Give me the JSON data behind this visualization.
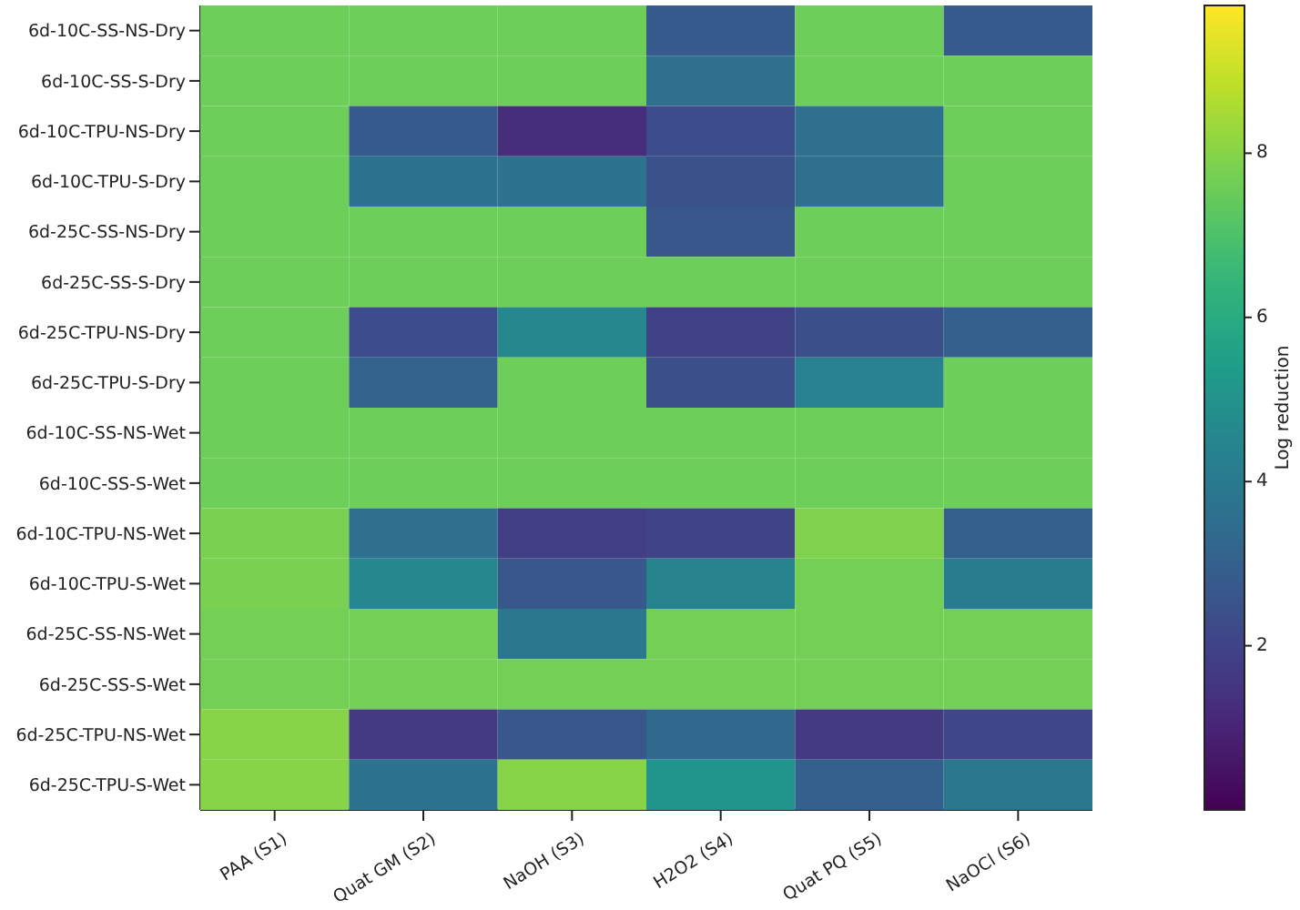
{
  "chart_data": {
    "type": "heatmap",
    "clabel": "Log reduction",
    "clim": [
      0,
      9.8
    ],
    "cticks": [
      2,
      4,
      6,
      8
    ],
    "categories": [
      "PAA (S1)",
      "Quat GM (S2)",
      "NaOH (S3)",
      "H2O2 (S4)",
      "Quat PQ (S5)",
      "NaOCl (S6)"
    ],
    "y_categories": [
      "6d-10C-SS-NS-Dry",
      "6d-10C-SS-S-Dry",
      "6d-10C-TPU-NS-Dry",
      "6d-10C-TPU-S-Dry",
      "6d-25C-SS-NS-Dry",
      "6d-25C-SS-S-Dry",
      "6d-25C-TPU-NS-Dry",
      "6d-25C-TPU-S-Dry",
      "6d-10C-SS-NS-Wet",
      "6d-10C-SS-S-Wet",
      "6d-10C-TPU-NS-Wet",
      "6d-10C-TPU-S-Wet",
      "6d-25C-SS-NS-Wet",
      "6d-25C-SS-S-Wet",
      "6d-25C-TPU-NS-Wet",
      "6d-25C-TPU-S-Wet"
    ],
    "cells": [
      [
        7.6,
        7.6,
        7.6,
        2.8,
        7.6,
        2.8
      ],
      [
        7.6,
        7.6,
        7.6,
        3.6,
        7.6,
        7.6
      ],
      [
        7.6,
        2.8,
        1.3,
        2.3,
        3.6,
        7.6
      ],
      [
        7.6,
        3.7,
        3.7,
        2.5,
        3.6,
        7.6
      ],
      [
        7.6,
        7.6,
        7.6,
        2.7,
        7.6,
        7.6
      ],
      [
        7.6,
        7.6,
        7.6,
        7.6,
        7.6,
        7.6
      ],
      [
        7.6,
        2.3,
        4.6,
        1.9,
        2.4,
        3.0
      ],
      [
        7.6,
        3.1,
        7.6,
        2.4,
        4.3,
        7.6
      ],
      [
        7.6,
        7.6,
        7.6,
        7.6,
        7.6,
        7.6
      ],
      [
        7.6,
        7.6,
        7.6,
        7.6,
        7.6,
        7.6
      ],
      [
        7.8,
        3.6,
        1.8,
        2.0,
        7.9,
        3.0
      ],
      [
        7.8,
        4.6,
        2.7,
        4.4,
        7.7,
        4.1
      ],
      [
        7.7,
        7.7,
        3.9,
        7.7,
        7.7,
        7.7
      ],
      [
        7.7,
        7.7,
        7.7,
        7.7,
        7.7,
        7.7
      ],
      [
        8.0,
        1.7,
        2.7,
        3.3,
        1.7,
        2.1
      ],
      [
        8.0,
        3.7,
        8.0,
        5.1,
        3.0,
        3.9
      ]
    ]
  }
}
